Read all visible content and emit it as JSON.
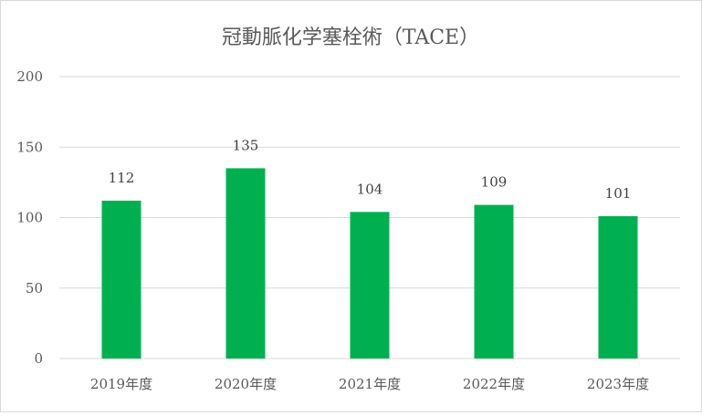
{
  "chart_data": {
    "type": "bar",
    "title": "冠動脈化学塞栓術（TACE）",
    "categories": [
      "2019年度",
      "2020年度",
      "2021年度",
      "2022年度",
      "2023年度"
    ],
    "values": [
      112,
      135,
      104,
      109,
      101
    ],
    "data_labels": [
      "112",
      "135",
      "104",
      "109",
      "101"
    ],
    "ylim": [
      0,
      200
    ],
    "yticks": [
      "0",
      "50",
      "100",
      "150",
      "200"
    ],
    "xlabel": "",
    "ylabel": "",
    "grid": true,
    "legend": "none",
    "bar_color": "#00b050"
  }
}
